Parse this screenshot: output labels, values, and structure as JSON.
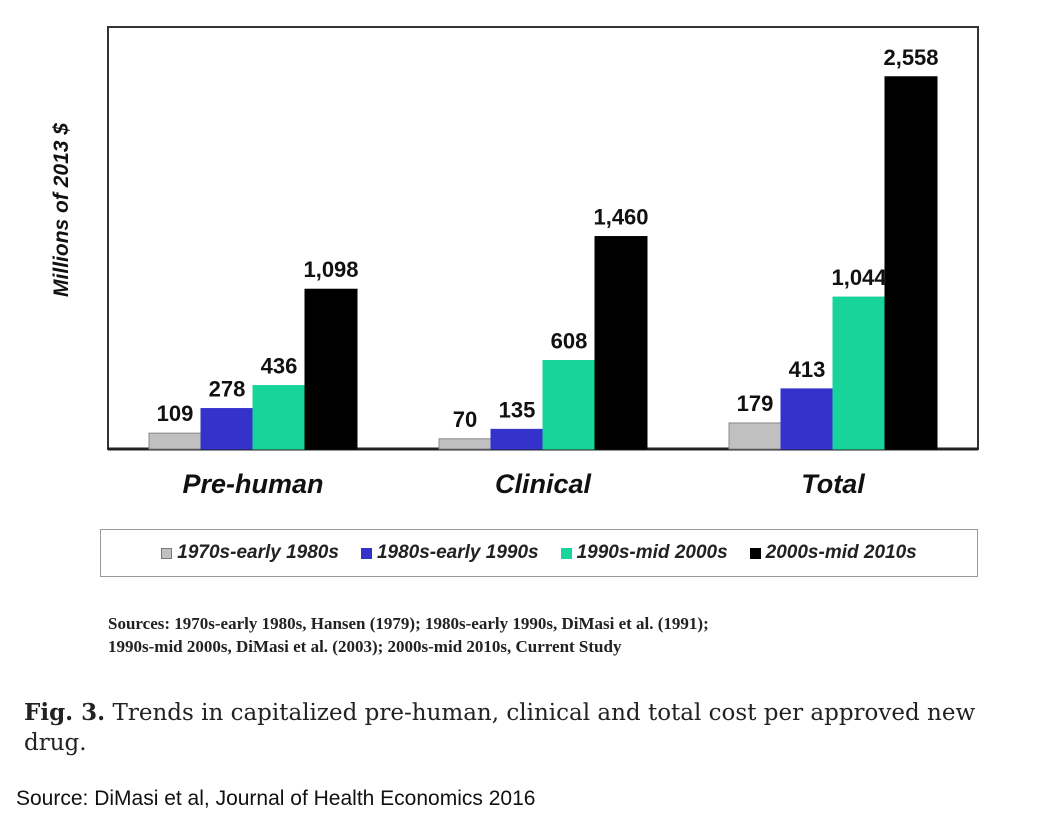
{
  "chart_data": {
    "type": "bar",
    "ylabel": "Millions of 2013 $",
    "xlabel": "",
    "categories": [
      "Pre-human",
      "Clinical",
      "Total"
    ],
    "series": [
      {
        "name": "1970s-early 1980s",
        "color": "#c0c0c0",
        "values": [
          109,
          70,
          179
        ]
      },
      {
        "name": "1980s-early 1990s",
        "color": "#3333cc",
        "values": [
          278,
          135,
          413
        ]
      },
      {
        "name": "1990s-mid 2000s",
        "color": "#19d49a",
        "values": [
          436,
          608,
          1044
        ]
      },
      {
        "name": "2000s-mid 2010s",
        "color": "#000000",
        "values": [
          1098,
          1460,
          2558
        ]
      }
    ],
    "value_labels": [
      [
        "109",
        "70",
        "179"
      ],
      [
        "278",
        "135",
        "413"
      ],
      [
        "436",
        "608",
        "1,044"
      ],
      [
        "1,098",
        "1,460",
        "2,558"
      ]
    ],
    "ylim": [
      0,
      2900
    ],
    "grid": false,
    "legend_position": "bottom"
  },
  "sources": {
    "line1": "Sources:  1970s-early 1980s, Hansen (1979); 1980s-early 1990s, DiMasi et al. (1991);",
    "line2": "1990s-mid 2000s,  DiMasi  et al.  (2003); 2000s-mid 2010s, Current Study"
  },
  "caption": {
    "fig_number": "Fig. 3.",
    "text": "Trends in capitalized pre-human, clinical and total cost per approved new drug."
  },
  "footer": {
    "source": "Source: DiMasi et al, Journal of Health Economics 2016"
  }
}
